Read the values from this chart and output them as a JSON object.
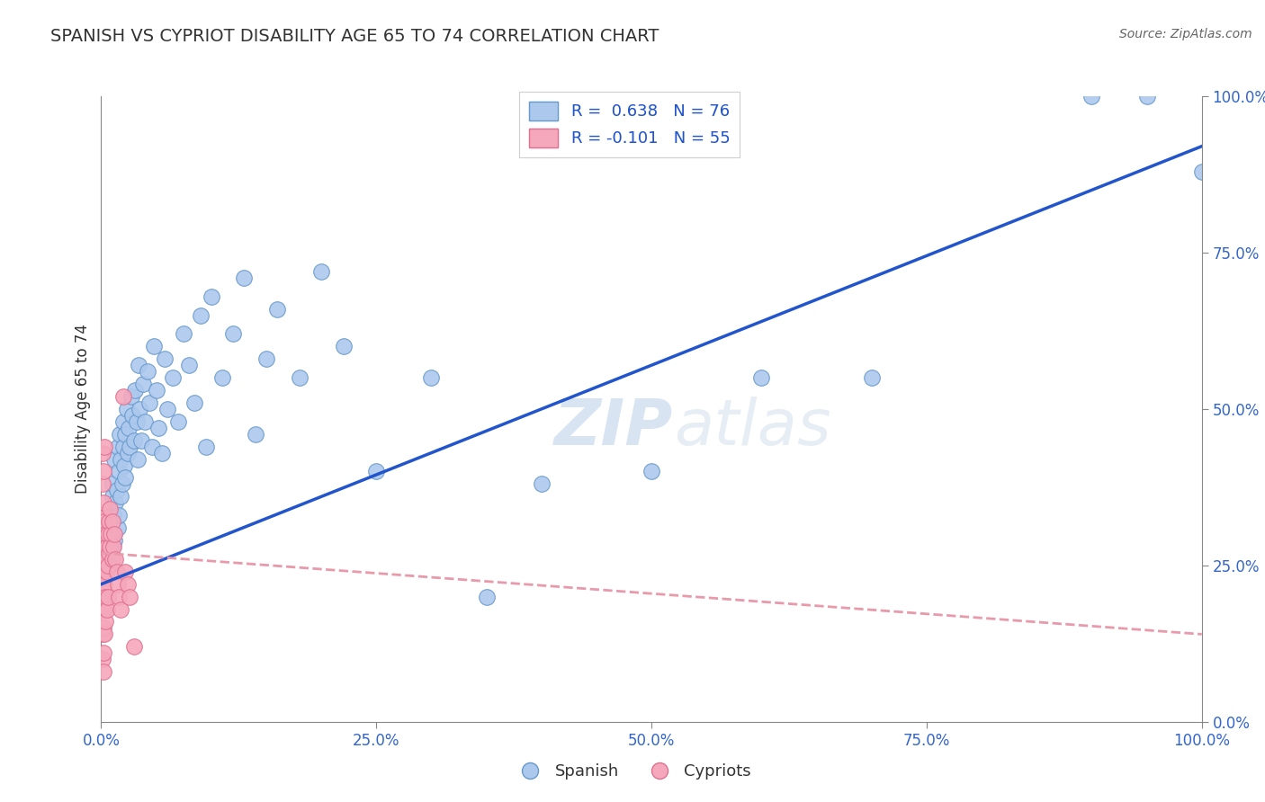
{
  "title": "SPANISH VS CYPRIOT DISABILITY AGE 65 TO 74 CORRELATION CHART",
  "source": "Source: ZipAtlas.com",
  "ylabel": "Disability Age 65 to 74",
  "xlim": [
    0.0,
    1.0
  ],
  "ylim": [
    0.0,
    1.0
  ],
  "xticks": [
    0.0,
    0.25,
    0.5,
    0.75,
    1.0
  ],
  "yticks": [
    0.0,
    0.25,
    0.5,
    0.75,
    1.0
  ],
  "xticklabels": [
    "0.0%",
    "25.0%",
    "50.0%",
    "75.0%",
    "100.0%"
  ],
  "yticklabels": [
    "0.0%",
    "25.0%",
    "50.0%",
    "75.0%",
    "100.0%"
  ],
  "spanish_color": "#adc8ed",
  "cypriot_color": "#f5a8bc",
  "spanish_edge": "#6699cc",
  "cypriot_edge": "#e07090",
  "trend_spanish_color": "#2255cc",
  "trend_cypriot_color": "#e899aa",
  "trend_cypriot_dash": [
    6,
    4
  ],
  "r_spanish": 0.638,
  "n_spanish": 76,
  "r_cypriot": -0.101,
  "n_cypriot": 55,
  "legend_label_spanish": "Spanish",
  "legend_label_cypriot": "Cypriots",
  "watermark_zip": "ZIP",
  "watermark_atlas": "atlas",
  "background_color": "#ffffff",
  "grid_color": "#cccccc",
  "tick_color": "#3366cc",
  "title_color": "#333333",
  "source_color": "#666666",
  "spanish_x": [
    0.005,
    0.007,
    0.008,
    0.009,
    0.01,
    0.01,
    0.01,
    0.011,
    0.012,
    0.012,
    0.013,
    0.014,
    0.015,
    0.015,
    0.016,
    0.016,
    0.017,
    0.018,
    0.018,
    0.019,
    0.02,
    0.02,
    0.021,
    0.022,
    0.022,
    0.023,
    0.024,
    0.025,
    0.026,
    0.027,
    0.028,
    0.03,
    0.031,
    0.032,
    0.033,
    0.034,
    0.035,
    0.036,
    0.038,
    0.04,
    0.042,
    0.044,
    0.046,
    0.048,
    0.05,
    0.052,
    0.055,
    0.058,
    0.06,
    0.065,
    0.07,
    0.075,
    0.08,
    0.085,
    0.09,
    0.095,
    0.1,
    0.11,
    0.12,
    0.13,
    0.14,
    0.15,
    0.16,
    0.18,
    0.2,
    0.22,
    0.25,
    0.3,
    0.35,
    0.4,
    0.5,
    0.6,
    0.7,
    0.9,
    0.95,
    1.0
  ],
  "spanish_y": [
    0.27,
    0.32,
    0.25,
    0.3,
    0.36,
    0.28,
    0.38,
    0.33,
    0.29,
    0.42,
    0.35,
    0.37,
    0.31,
    0.44,
    0.4,
    0.33,
    0.46,
    0.36,
    0.42,
    0.38,
    0.44,
    0.48,
    0.41,
    0.46,
    0.39,
    0.5,
    0.43,
    0.47,
    0.44,
    0.52,
    0.49,
    0.45,
    0.53,
    0.48,
    0.42,
    0.57,
    0.5,
    0.45,
    0.54,
    0.48,
    0.56,
    0.51,
    0.44,
    0.6,
    0.53,
    0.47,
    0.43,
    0.58,
    0.5,
    0.55,
    0.48,
    0.62,
    0.57,
    0.51,
    0.65,
    0.44,
    0.68,
    0.55,
    0.62,
    0.71,
    0.46,
    0.58,
    0.66,
    0.55,
    0.72,
    0.6,
    0.4,
    0.55,
    0.2,
    0.38,
    0.4,
    0.55,
    0.55,
    1.0,
    1.0,
    0.88
  ],
  "cypriot_x": [
    0.001,
    0.001,
    0.001,
    0.001,
    0.001,
    0.001,
    0.001,
    0.001,
    0.001,
    0.001,
    0.002,
    0.002,
    0.002,
    0.002,
    0.002,
    0.002,
    0.002,
    0.002,
    0.002,
    0.002,
    0.003,
    0.003,
    0.003,
    0.003,
    0.003,
    0.003,
    0.004,
    0.004,
    0.004,
    0.004,
    0.005,
    0.005,
    0.005,
    0.006,
    0.006,
    0.006,
    0.007,
    0.007,
    0.008,
    0.008,
    0.009,
    0.01,
    0.01,
    0.011,
    0.012,
    0.013,
    0.014,
    0.015,
    0.016,
    0.018,
    0.02,
    0.022,
    0.024,
    0.026,
    0.03
  ],
  "cypriot_y": [
    0.3,
    0.26,
    0.22,
    0.18,
    0.14,
    0.1,
    0.32,
    0.38,
    0.43,
    0.2,
    0.28,
    0.33,
    0.24,
    0.19,
    0.15,
    0.11,
    0.35,
    0.4,
    0.08,
    0.25,
    0.32,
    0.28,
    0.22,
    0.18,
    0.44,
    0.14,
    0.3,
    0.26,
    0.2,
    0.16,
    0.28,
    0.24,
    0.18,
    0.3,
    0.25,
    0.2,
    0.32,
    0.27,
    0.34,
    0.28,
    0.3,
    0.32,
    0.26,
    0.28,
    0.3,
    0.26,
    0.24,
    0.22,
    0.2,
    0.18,
    0.52,
    0.24,
    0.22,
    0.2,
    0.12
  ]
}
